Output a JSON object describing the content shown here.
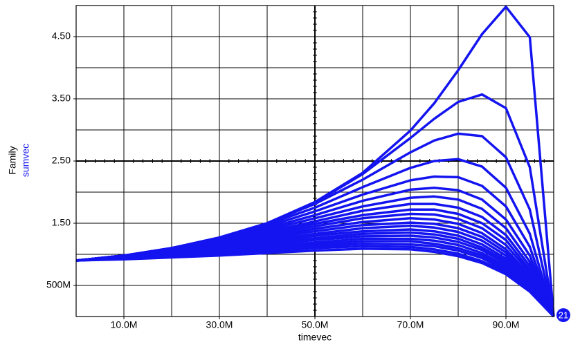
{
  "chart_data": {
    "type": "line",
    "x_label": "timevec",
    "y_label": "Family",
    "y_label_2": "sumvec",
    "marker_label": "21",
    "color": "#1414f0",
    "x": [
      0,
      0.01,
      0.02,
      0.03,
      0.04,
      0.05,
      0.06,
      0.07,
      0.075,
      0.08,
      0.085,
      0.09,
      0.095,
      0.1
    ],
    "xlim": [
      0,
      0.1
    ],
    "ylim": [
      0,
      5
    ],
    "xticks": [
      {
        "value": 0.01,
        "label": "10.0M"
      },
      {
        "value": 0.03,
        "label": "30.0M"
      },
      {
        "value": 0.05,
        "label": "50.0M"
      },
      {
        "value": 0.07,
        "label": "70.0M"
      },
      {
        "value": 0.09,
        "label": "90.0M"
      }
    ],
    "yticks": [
      {
        "value": 0.5,
        "label": "500M"
      },
      {
        "value": 1.5,
        "label": "1.50"
      },
      {
        "value": 2.5,
        "label": "2.50"
      },
      {
        "value": 3.5,
        "label": "3.50"
      },
      {
        "value": 4.5,
        "label": "4.50"
      }
    ],
    "xgrid": [
      0.01,
      0.02,
      0.03,
      0.04,
      0.05,
      0.06,
      0.07,
      0.08,
      0.09
    ],
    "ygrid": [
      0.5,
      1,
      1.5,
      2,
      2.5,
      3,
      3.5,
      4,
      4.5
    ],
    "series": [
      {
        "values": [
          0.9,
          0.98,
          1.1,
          1.27,
          1.5,
          1.84,
          2.31,
          2.99,
          3.43,
          3.96,
          4.54,
          4.98,
          4.49,
          0
        ]
      },
      {
        "values": [
          0.9,
          0.98,
          1.1,
          1.27,
          1.5,
          1.83,
          2.29,
          2.87,
          3.18,
          3.45,
          3.57,
          3.35,
          2.4,
          0
        ]
      },
      {
        "values": [
          0.9,
          0.98,
          1.1,
          1.26,
          1.5,
          1.81,
          2.2,
          2.64,
          2.83,
          2.94,
          2.9,
          2.56,
          1.72,
          0
        ]
      },
      {
        "values": [
          0.9,
          0.98,
          1.1,
          1.26,
          1.48,
          1.75,
          2.08,
          2.39,
          2.5,
          2.53,
          2.41,
          2.07,
          1.33,
          0
        ]
      },
      {
        "values": [
          0.9,
          0.98,
          1.09,
          1.25,
          1.45,
          1.69,
          1.96,
          2.19,
          2.25,
          2.24,
          2.1,
          1.77,
          1.12,
          0
        ]
      },
      {
        "values": [
          0.9,
          0.98,
          1.09,
          1.24,
          1.42,
          1.63,
          1.86,
          2.04,
          2.07,
          2.03,
          1.88,
          1.56,
          0.98,
          0
        ]
      },
      {
        "values": [
          0.9,
          0.98,
          1.09,
          1.22,
          1.39,
          1.58,
          1.77,
          1.91,
          1.93,
          1.88,
          1.73,
          1.42,
          0.88,
          0
        ]
      },
      {
        "values": [
          0.9,
          0.98,
          1.08,
          1.21,
          1.36,
          1.53,
          1.7,
          1.81,
          1.81,
          1.75,
          1.6,
          1.31,
          0.81,
          0
        ]
      },
      {
        "values": [
          0.9,
          0.98,
          1.07,
          1.19,
          1.34,
          1.49,
          1.63,
          1.72,
          1.72,
          1.65,
          1.5,
          1.23,
          0.75,
          0
        ]
      },
      {
        "values": [
          0.9,
          0.97,
          1.07,
          1.18,
          1.31,
          1.45,
          1.58,
          1.65,
          1.64,
          1.57,
          1.42,
          1.15,
          0.71,
          0
        ]
      },
      {
        "values": [
          0.9,
          0.97,
          1.06,
          1.16,
          1.28,
          1.41,
          1.52,
          1.58,
          1.56,
          1.49,
          1.34,
          1.08,
          0.66,
          0
        ]
      },
      {
        "values": [
          0.9,
          0.97,
          1.05,
          1.15,
          1.26,
          1.37,
          1.47,
          1.51,
          1.49,
          1.42,
          1.28,
          1.03,
          0.63,
          0
        ]
      },
      {
        "values": [
          0.9,
          0.97,
          1.04,
          1.13,
          1.23,
          1.33,
          1.42,
          1.46,
          1.43,
          1.36,
          1.22,
          0.98,
          0.6,
          0
        ]
      },
      {
        "values": [
          0.9,
          0.96,
          1.03,
          1.11,
          1.2,
          1.3,
          1.37,
          1.4,
          1.37,
          1.3,
          1.16,
          0.93,
          0.56,
          0
        ]
      },
      {
        "values": [
          0.9,
          0.96,
          1.02,
          1.1,
          1.18,
          1.26,
          1.33,
          1.35,
          1.32,
          1.25,
          1.11,
          0.89,
          0.54,
          0
        ]
      },
      {
        "values": [
          0.9,
          0.95,
          1.01,
          1.08,
          1.16,
          1.23,
          1.29,
          1.3,
          1.27,
          1.2,
          1.07,
          0.85,
          0.51,
          0
        ]
      },
      {
        "values": [
          0.9,
          0.95,
          1.0,
          1.06,
          1.13,
          1.19,
          1.25,
          1.25,
          1.22,
          1.15,
          1.02,
          0.81,
          0.49,
          0
        ]
      },
      {
        "values": [
          0.9,
          0.94,
          0.99,
          1.04,
          1.1,
          1.16,
          1.21,
          1.21,
          1.17,
          1.1,
          0.98,
          0.78,
          0.47,
          0
        ]
      },
      {
        "values": [
          0.9,
          0.94,
          0.98,
          1.02,
          1.08,
          1.13,
          1.17,
          1.16,
          1.13,
          1.06,
          0.94,
          0.74,
          0.44,
          0
        ]
      },
      {
        "values": [
          0.9,
          0.93,
          0.96,
          1.0,
          1.05,
          1.1,
          1.13,
          1.12,
          1.08,
          1.01,
          0.89,
          0.71,
          0.42,
          0
        ]
      },
      {
        "values": [
          0.9,
          0.92,
          0.95,
          0.98,
          1.02,
          1.06,
          1.09,
          1.08,
          1.04,
          0.97,
          0.86,
          0.68,
          0.4,
          0
        ]
      }
    ]
  }
}
